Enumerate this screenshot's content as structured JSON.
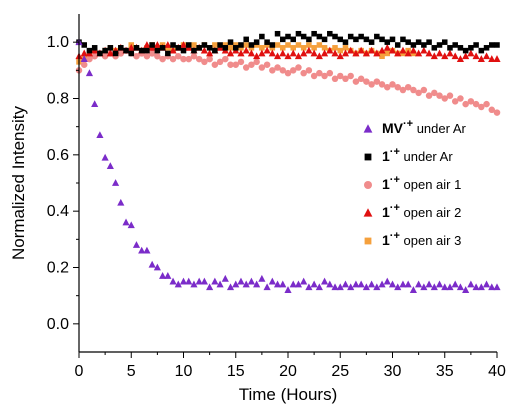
{
  "chart_data": {
    "type": "scatter",
    "title": "",
    "xlabel": "Time (Hours)",
    "ylabel": "Normalized Intensity",
    "xlim": [
      0,
      40
    ],
    "ylim": [
      -0.1,
      1.1
    ],
    "xticks": [
      0,
      5,
      10,
      15,
      20,
      25,
      30,
      35,
      40
    ],
    "yticks": [
      0.0,
      0.2,
      0.4,
      0.6,
      0.8,
      1.0
    ],
    "xtick_labels": [
      "0",
      "5",
      "10",
      "15",
      "20",
      "25",
      "30",
      "35",
      "40"
    ],
    "ytick_labels": [
      "0.0",
      "0.2",
      "0.4",
      "0.6",
      "0.8",
      "1.0"
    ],
    "grid": false,
    "legend_position": "right",
    "series": [
      {
        "name": "MV·+ under Ar",
        "legend_main": "MV",
        "legend_sup": "·+",
        "legend_rest": " under Ar",
        "color": "#7b2cc9",
        "marker": "triangle",
        "x": [
          0,
          0.5,
          1,
          1.5,
          2,
          2.5,
          3,
          3.5,
          4,
          4.5,
          5,
          5.5,
          6,
          6.5,
          7,
          7.5,
          8,
          8.5,
          9,
          9.5,
          10,
          10.5,
          11,
          11.5,
          12,
          12.5,
          13,
          13.5,
          14,
          14.5,
          15,
          15.5,
          16,
          16.5,
          17,
          17.5,
          18,
          18.5,
          19,
          19.5,
          20,
          20.5,
          21,
          21.5,
          22,
          22.5,
          23,
          23.5,
          24,
          24.5,
          25,
          25.5,
          26,
          26.5,
          27,
          27.5,
          28,
          28.5,
          29,
          29.5,
          30,
          30.5,
          31,
          31.5,
          32,
          32.5,
          33,
          33.5,
          34,
          34.5,
          35,
          35.5,
          36,
          36.5,
          37,
          37.5,
          38,
          38.5,
          39,
          39.5,
          40
        ],
        "values": [
          1.0,
          0.94,
          0.89,
          0.78,
          0.67,
          0.59,
          0.56,
          0.5,
          0.43,
          0.36,
          0.35,
          0.28,
          0.26,
          0.26,
          0.21,
          0.2,
          0.17,
          0.17,
          0.15,
          0.14,
          0.15,
          0.15,
          0.14,
          0.15,
          0.15,
          0.13,
          0.15,
          0.14,
          0.16,
          0.13,
          0.14,
          0.15,
          0.14,
          0.15,
          0.14,
          0.16,
          0.13,
          0.15,
          0.14,
          0.14,
          0.12,
          0.14,
          0.14,
          0.15,
          0.13,
          0.14,
          0.13,
          0.15,
          0.14,
          0.13,
          0.13,
          0.14,
          0.13,
          0.14,
          0.14,
          0.13,
          0.14,
          0.13,
          0.14,
          0.15,
          0.14,
          0.13,
          0.14,
          0.14,
          0.12,
          0.14,
          0.13,
          0.14,
          0.13,
          0.14,
          0.13,
          0.13,
          0.14,
          0.13,
          0.12,
          0.14,
          0.13,
          0.13,
          0.14,
          0.13,
          0.13
        ]
      },
      {
        "name": "1·+ under Ar",
        "legend_main": "1",
        "legend_sup": "·+",
        "legend_rest": " under Ar",
        "color": "#000000",
        "marker": "square",
        "x": [
          0,
          0.5,
          1,
          1.5,
          2,
          2.5,
          3,
          3.5,
          4,
          4.5,
          5,
          5.5,
          6,
          6.5,
          7,
          7.5,
          8,
          8.5,
          9,
          9.5,
          10,
          10.5,
          11,
          11.5,
          12,
          12.5,
          13,
          13.5,
          14,
          14.5,
          15,
          15.5,
          16,
          16.5,
          17,
          17.5,
          18,
          18.5,
          19,
          19.5,
          20,
          20.5,
          21,
          21.5,
          22,
          22.5,
          23,
          23.5,
          24,
          24.5,
          25,
          25.5,
          26,
          26.5,
          27,
          27.5,
          28,
          28.5,
          29,
          29.5,
          30,
          30.5,
          31,
          31.5,
          32,
          32.5,
          33,
          33.5,
          34,
          34.5,
          35,
          35.5,
          36,
          36.5,
          37,
          37.5,
          38,
          38.5,
          39,
          39.5,
          40
        ],
        "values": [
          1.0,
          0.99,
          0.97,
          0.98,
          0.96,
          0.97,
          0.98,
          0.96,
          0.98,
          0.97,
          0.96,
          0.98,
          0.97,
          0.97,
          0.99,
          0.97,
          0.98,
          0.96,
          0.99,
          0.98,
          0.97,
          0.99,
          0.97,
          0.98,
          0.99,
          0.98,
          0.97,
          0.99,
          0.98,
          1.0,
          0.98,
          0.99,
          1.01,
          0.99,
          1.0,
          1.02,
          1.0,
          0.99,
          1.03,
          1.01,
          1.02,
          1.01,
          1.03,
          1.02,
          1.01,
          1.03,
          1.02,
          1.01,
          1.03,
          1.02,
          1.01,
          1.0,
          1.02,
          1.01,
          1.02,
          1.01,
          1.0,
          1.02,
          1.01,
          1.0,
          1.01,
          0.99,
          1.01,
          1.0,
          0.99,
          1.0,
          0.99,
          1.0,
          0.98,
          0.99,
          1.0,
          0.98,
          0.99,
          0.98,
          0.97,
          0.98,
          0.99,
          0.97,
          0.98,
          0.99,
          0.99
        ]
      },
      {
        "name": "1·+ open air 1",
        "legend_main": "1",
        "legend_sup": "·+",
        "legend_rest": " open air 1",
        "color": "#f08c8c",
        "marker": "circle",
        "x": [
          0,
          0.5,
          1,
          1.5,
          2,
          2.5,
          3,
          3.5,
          4,
          4.5,
          5,
          5.5,
          6,
          6.5,
          7,
          7.5,
          8,
          8.5,
          9,
          9.5,
          10,
          10.5,
          11,
          11.5,
          12,
          12.5,
          13,
          13.5,
          14,
          14.5,
          15,
          15.5,
          16,
          16.5,
          17,
          17.5,
          18,
          18.5,
          19,
          19.5,
          20,
          20.5,
          21,
          21.5,
          22,
          22.5,
          23,
          23.5,
          24,
          24.5,
          25,
          25.5,
          26,
          26.5,
          27,
          27.5,
          28,
          28.5,
          29,
          29.5,
          30,
          30.5,
          31,
          31.5,
          32,
          32.5,
          33,
          33.5,
          34,
          34.5,
          35,
          35.5,
          36,
          36.5,
          37,
          37.5,
          38,
          38.5,
          39,
          39.5,
          40
        ],
        "values": [
          0.9,
          0.92,
          0.94,
          0.95,
          0.96,
          0.95,
          0.96,
          0.95,
          0.96,
          0.97,
          0.96,
          0.95,
          0.96,
          0.95,
          0.96,
          0.95,
          0.94,
          0.95,
          0.94,
          0.95,
          0.94,
          0.94,
          0.95,
          0.94,
          0.93,
          0.94,
          0.92,
          0.93,
          0.94,
          0.92,
          0.92,
          0.93,
          0.91,
          0.92,
          0.93,
          0.91,
          0.92,
          0.9,
          0.91,
          0.9,
          0.89,
          0.9,
          0.91,
          0.89,
          0.9,
          0.88,
          0.89,
          0.88,
          0.89,
          0.87,
          0.88,
          0.87,
          0.88,
          0.86,
          0.87,
          0.86,
          0.85,
          0.86,
          0.85,
          0.84,
          0.85,
          0.84,
          0.83,
          0.84,
          0.83,
          0.82,
          0.83,
          0.81,
          0.82,
          0.81,
          0.8,
          0.81,
          0.79,
          0.8,
          0.78,
          0.79,
          0.78,
          0.77,
          0.78,
          0.76,
          0.75
        ]
      },
      {
        "name": "1·+ open air 2",
        "legend_main": "1",
        "legend_sup": "·+",
        "legend_rest": " open air 2",
        "color": "#e01010",
        "marker": "triangle",
        "x": [
          0,
          0.5,
          1,
          1.5,
          2,
          2.5,
          3,
          3.5,
          4,
          4.5,
          5,
          5.5,
          6,
          6.5,
          7,
          7.5,
          8,
          8.5,
          9,
          9.5,
          10,
          10.5,
          11,
          11.5,
          12,
          12.5,
          13,
          13.5,
          14,
          14.5,
          15,
          15.5,
          16,
          16.5,
          17,
          17.5,
          18,
          18.5,
          19,
          19.5,
          20,
          20.5,
          21,
          21.5,
          22,
          22.5,
          23,
          23.5,
          24,
          24.5,
          25,
          25.5,
          26,
          26.5,
          27,
          27.5,
          28,
          28.5,
          29,
          29.5,
          30,
          30.5,
          31,
          31.5,
          32,
          32.5,
          33,
          33.5,
          34,
          34.5,
          35,
          35.5,
          36,
          36.5,
          37,
          37.5,
          38,
          38.5,
          39,
          39.5,
          40
        ],
        "values": [
          0.95,
          0.96,
          0.96,
          0.97,
          0.96,
          0.97,
          0.96,
          0.97,
          0.98,
          0.97,
          0.98,
          0.98,
          0.97,
          0.99,
          0.98,
          0.99,
          0.98,
          0.99,
          0.97,
          0.98,
          0.99,
          0.98,
          0.97,
          0.98,
          0.97,
          0.96,
          0.97,
          0.98,
          0.97,
          0.96,
          0.97,
          0.96,
          0.97,
          0.96,
          0.95,
          0.96,
          0.97,
          0.96,
          0.95,
          0.96,
          0.95,
          0.96,
          0.95,
          0.96,
          0.97,
          0.96,
          0.95,
          0.96,
          0.97,
          0.96,
          0.95,
          0.96,
          0.97,
          0.96,
          0.97,
          0.96,
          0.97,
          0.96,
          0.97,
          0.98,
          0.97,
          0.96,
          0.97,
          0.96,
          0.97,
          0.96,
          0.97,
          0.96,
          0.95,
          0.96,
          0.95,
          0.96,
          0.95,
          0.94,
          0.95,
          0.96,
          0.95,
          0.94,
          0.95,
          0.94,
          0.94
        ]
      },
      {
        "name": "1·+ open air 3",
        "legend_main": "1",
        "legend_sup": "·+",
        "legend_rest": " open air 3",
        "color": "#f5a03c",
        "marker": "square",
        "x": [
          0,
          0.5,
          1,
          1.5,
          2,
          2.5,
          3,
          3.5,
          4,
          4.5,
          5,
          5.5,
          6,
          6.5,
          7,
          7.5,
          8,
          8.5,
          9,
          9.5,
          10,
          10.5,
          11,
          11.5,
          12,
          12.5,
          13,
          13.5,
          14,
          14.5,
          15,
          15.5,
          16,
          16.5,
          17,
          17.5,
          18,
          18.5,
          19,
          19.5,
          20,
          20.5,
          21,
          21.5,
          22,
          22.5,
          23,
          23.5,
          24,
          24.5,
          25,
          25.5,
          26,
          26.5,
          27,
          27.5,
          28,
          28.5,
          29,
          29.5,
          30,
          30.5,
          31,
          31.5,
          32
        ],
        "values": [
          0.93,
          0.94,
          0.96,
          0.97,
          0.96,
          0.97,
          0.98,
          0.97,
          0.98,
          0.97,
          0.99,
          0.98,
          0.97,
          0.98,
          0.99,
          0.98,
          0.99,
          0.98,
          0.97,
          0.98,
          0.99,
          0.98,
          0.99,
          0.98,
          0.99,
          0.98,
          0.99,
          0.98,
          0.99,
          0.98,
          0.99,
          0.98,
          0.99,
          0.98,
          0.99,
          0.98,
          0.99,
          0.98,
          0.99,
          0.98,
          0.99,
          0.98,
          0.99,
          0.98,
          0.99,
          0.98,
          0.99,
          0.98,
          0.97,
          0.98,
          0.97,
          0.98,
          0.97,
          0.96,
          0.97,
          0.96,
          0.97,
          0.96,
          0.95,
          0.96,
          0.97,
          0.96,
          0.96,
          0.97,
          0.96
        ]
      }
    ]
  }
}
